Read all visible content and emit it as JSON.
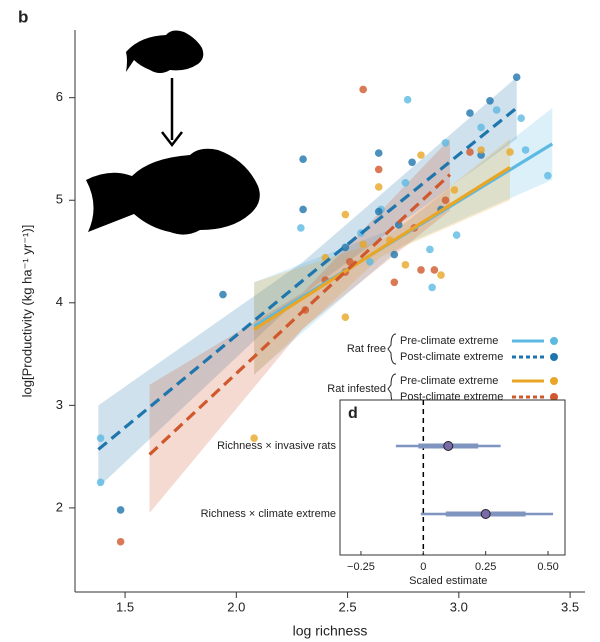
{
  "chart_data": [
    {
      "type": "scatter",
      "panel": "b",
      "xlabel": "log richness",
      "ylabel": "log[Productivity (kg ha⁻¹ yr⁻¹)]",
      "xlim": [
        1.275,
        3.567
      ],
      "ylim": [
        1.18,
        6.66
      ],
      "xticks": [
        1.5,
        {
          "value": 2,
          "label": "2.0"
        },
        2.5,
        {
          "value": 3,
          "label": "3.0"
        },
        3.5
      ],
      "yticks": [
        2,
        3,
        4,
        5,
        6
      ],
      "series": [
        {
          "group": "Rat free",
          "name": "Pre-climate extreme",
          "color": "#5cb9e2",
          "linestyle": "solid",
          "x": [
            1.39,
            1.39,
            2.77,
            2.94,
            3.1,
            3.17,
            3.28,
            3.4,
            3.3,
            2.99,
            2.76,
            2.87,
            2.65,
            2.6,
            2.88,
            2.29,
            2.56
          ],
          "values": [
            2.68,
            2.25,
            5.98,
            5.56,
            5.71,
            5.88,
            5.8,
            5.24,
            5.49,
            4.66,
            5.17,
            4.52,
            4.91,
            4.4,
            4.15,
            4.73,
            4.68
          ],
          "fit": {
            "x": [
              2.08,
              2.75,
              3.42
            ],
            "values": [
              3.77,
              4.66,
              5.55
            ],
            "lower": [
              3.3,
              4.56,
              5.2
            ],
            "upper": [
              4.2,
              4.76,
              5.9
            ]
          }
        },
        {
          "group": "Rat free",
          "name": "Post-climate extreme",
          "color": "#1f76ad",
          "linestyle": "dashed",
          "x": [
            3.26,
            3.14,
            3.05,
            2.3,
            2.3,
            2.64,
            2.64,
            2.71,
            1.48,
            1.94,
            2.73,
            2.79,
            2.92,
            2.49,
            3.1
          ],
          "values": [
            6.2,
            5.97,
            5.85,
            5.4,
            4.91,
            5.46,
            4.89,
            4.47,
            1.98,
            4.08,
            4.76,
            5.37,
            4.91,
            4.54,
            5.44
          ],
          "fit": {
            "x": [
              1.38,
              2.3,
              3.26
            ],
            "values": [
              2.57,
              4.22,
              5.9
            ],
            "lower": [
              2.2,
              4.08,
              5.6
            ],
            "upper": [
              3.0,
              4.4,
              6.2
            ]
          }
        },
        {
          "group": "Rat infested",
          "name": "Pre-climate extreme",
          "color": "#e9a626",
          "linestyle": "solid",
          "x": [
            2.08,
            2.49,
            2.49,
            2.64,
            2.76,
            2.92,
            2.4,
            2.83,
            2.98,
            3.1,
            3.23,
            2.57,
            2.69
          ],
          "values": [
            2.68,
            4.86,
            3.86,
            5.13,
            4.37,
            4.27,
            4.44,
            5.44,
            5.1,
            5.49,
            5.47,
            4.57,
            4.61
          ],
          "fit": {
            "x": [
              2.08,
              2.65,
              3.23
            ],
            "values": [
              3.74,
              4.53,
              5.32
            ],
            "lower": [
              3.3,
              4.45,
              5.0
            ],
            "upper": [
              4.2,
              4.6,
              5.6
            ]
          }
        },
        {
          "group": "Rat infested",
          "name": "Post-climate extreme",
          "color": "#d0582c",
          "linestyle": "dashed",
          "x": [
            1.48,
            2.57,
            2.64,
            2.83,
            2.71,
            2.89,
            2.31,
            2.4,
            2.49,
            2.94,
            2.8,
            3.05,
            2.51
          ],
          "values": [
            1.67,
            6.08,
            5.3,
            4.32,
            4.2,
            4.32,
            3.93,
            4.22,
            4.3,
            5.0,
            4.73,
            5.47,
            4.4
          ],
          "fit": {
            "x": [
              1.61,
              2.3,
              2.96
            ],
            "values": [
              2.52,
              3.92,
              5.25
            ],
            "lower": [
              1.95,
              3.75,
              4.9
            ],
            "upper": [
              3.2,
              4.1,
              5.6
            ]
          }
        }
      ]
    },
    {
      "type": "coefficient",
      "panel": "d",
      "xlabel": "Scaled estimate",
      "xlim": [
        -0.334,
        0.568
      ],
      "xticks": [
        {
          "value": -0.25,
          "label": "−0.25"
        },
        0,
        0.25,
        {
          "value": 0.5,
          "label": "0.50"
        }
      ],
      "categories": [
        "Richness × invasive rats",
        "Richness × climate extreme"
      ],
      "values": [
        0.1,
        0.25
      ],
      "inner": [
        [
          -0.02,
          0.22
        ],
        [
          0.09,
          0.41
        ]
      ],
      "outer": [
        [
          -0.11,
          0.31
        ],
        [
          -0.01,
          0.52
        ]
      ],
      "color": "#7f94bf"
    }
  ]
}
